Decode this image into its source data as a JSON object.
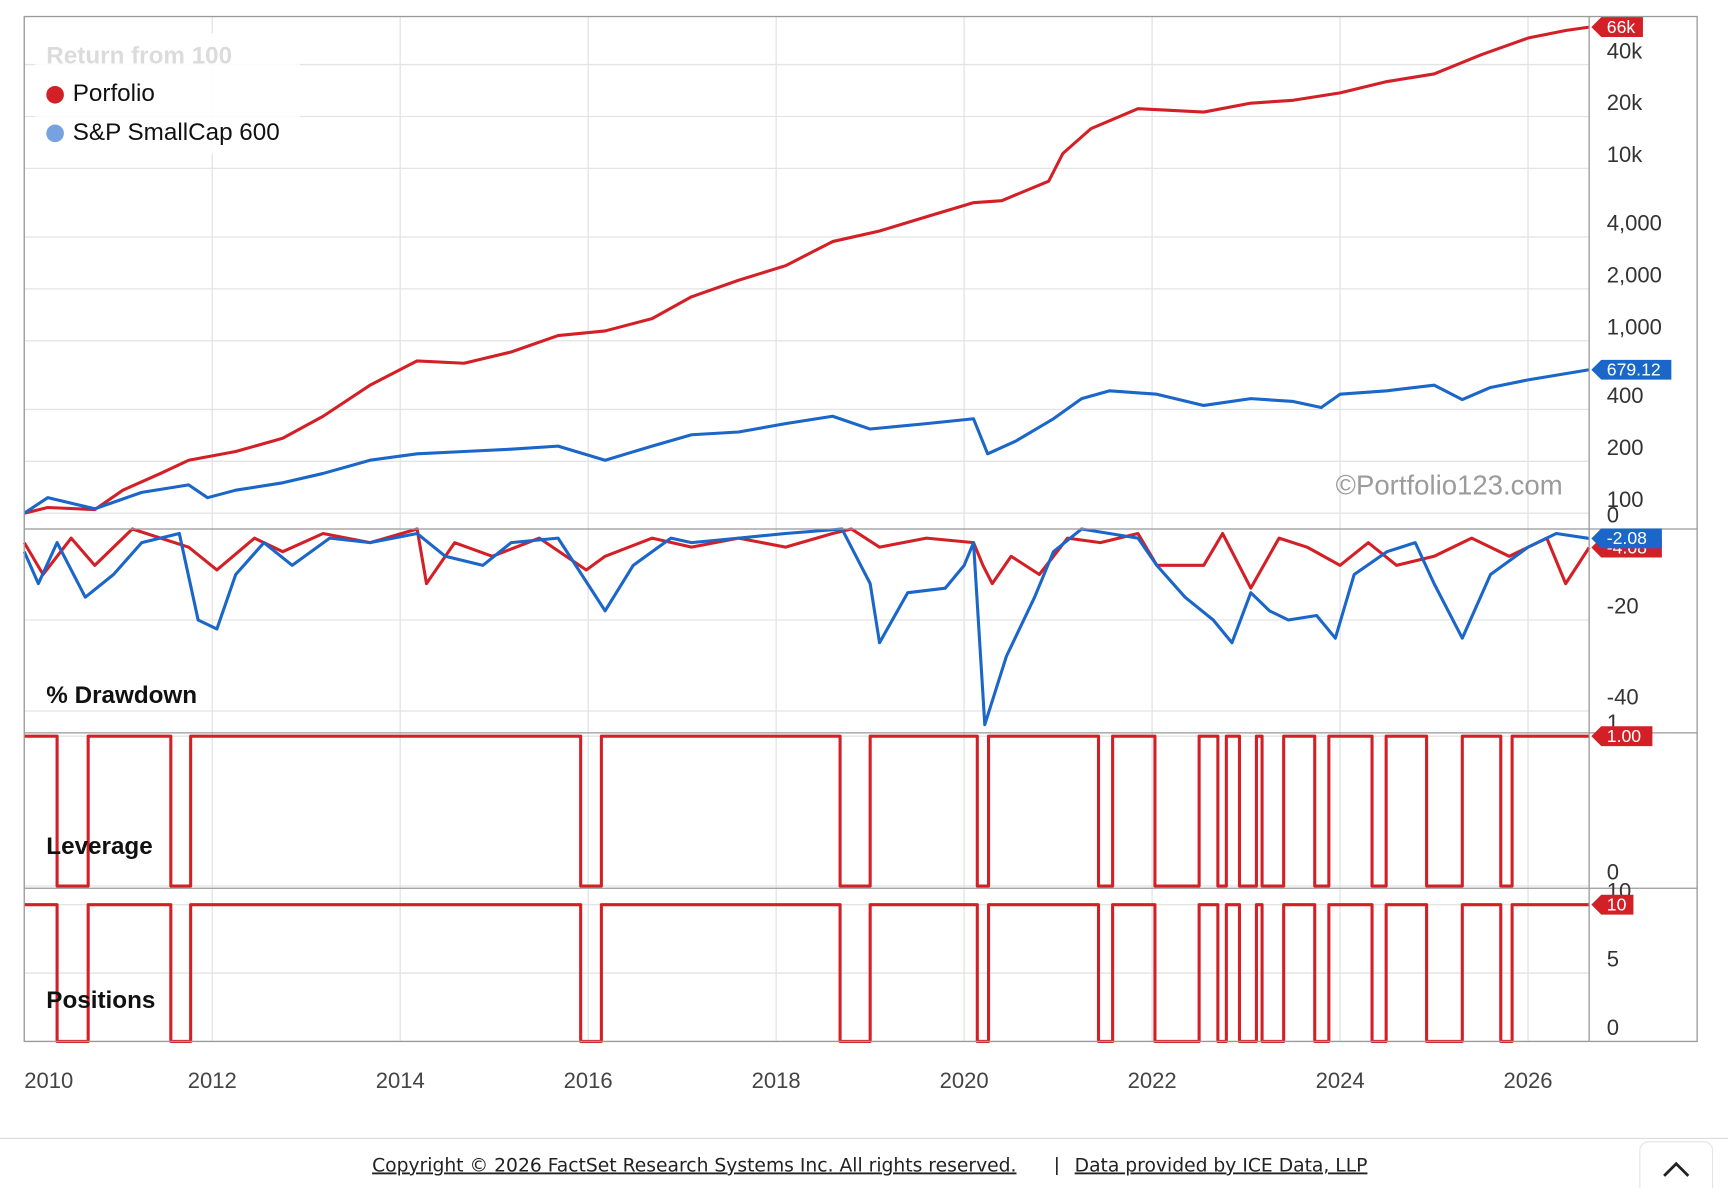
{
  "chart_data": [
    {
      "type": "line",
      "title": "Return from 100",
      "log": true,
      "grid": true,
      "legend": "top-left",
      "xlim": [
        2010.0,
        2026.65
      ],
      "xticks": [
        2010,
        2012,
        2014,
        2016,
        2018,
        2020,
        2022,
        2024,
        2026
      ],
      "ylim": [
        81,
        76000
      ],
      "yticks": [
        100,
        200,
        400,
        {
          "value": 1000,
          "label": "1,000"
        },
        {
          "value": 2000,
          "label": "2,000"
        },
        {
          "value": 4000,
          "label": "4,000"
        },
        {
          "value": 10000,
          "label": "10k"
        },
        {
          "value": 20000,
          "label": "20k"
        },
        {
          "value": 40000,
          "label": "40k"
        }
      ],
      "series": [
        {
          "name": "Porfolio",
          "color": "#d32027",
          "x": [
            2010.0,
            2010.25,
            2010.75,
            2011.05,
            2011.45,
            2011.75,
            2012.25,
            2012.75,
            2013.18,
            2013.68,
            2014.18,
            2014.68,
            2015.18,
            2015.68,
            2016.18,
            2016.68,
            2017.1,
            2017.6,
            2018.1,
            2018.6,
            2019.1,
            2019.6,
            2020.1,
            2020.4,
            2020.9,
            2021.05,
            2021.35,
            2021.85,
            2022.55,
            2023.05,
            2023.5,
            2024.0,
            2024.5,
            2025.0,
            2025.5,
            2026.0,
            2026.4,
            2026.65
          ],
          "values": [
            100,
            108,
            105,
            136,
            170,
            203,
            228,
            272,
            365,
            553,
            764,
            741,
            861,
            1072,
            1140,
            1345,
            1800,
            2246,
            2725,
            3762,
            4332,
            5244,
            6327,
            6500,
            8436,
            12200,
            17000,
            22200,
            21200,
            23900,
            24850,
            27400,
            31900,
            35300,
            45600,
            57000,
            63000,
            66000
          ],
          "value_labels": [
            null,
            null,
            null,
            null,
            null,
            null,
            null,
            null,
            null,
            null,
            null,
            null,
            null,
            null,
            null,
            null,
            null,
            null,
            null,
            null,
            null,
            null,
            null,
            null,
            null,
            null,
            null,
            null,
            null,
            null,
            null,
            null,
            null,
            null,
            null,
            null,
            null,
            "66k"
          ]
        },
        {
          "name": "S&P SmallCap 600",
          "color": "#1a66c9",
          "x": [
            2010.0,
            2010.25,
            2010.75,
            2011.25,
            2011.75,
            2011.95,
            2012.25,
            2012.75,
            2013.18,
            2013.68,
            2014.18,
            2014.68,
            2015.18,
            2015.68,
            2016.18,
            2016.68,
            2017.1,
            2017.6,
            2018.1,
            2018.6,
            2019.0,
            2019.6,
            2020.1,
            2020.25,
            2020.55,
            2020.95,
            2021.25,
            2021.55,
            2022.05,
            2022.55,
            2023.05,
            2023.5,
            2023.8,
            2024.0,
            2024.5,
            2025.0,
            2025.3,
            2025.6,
            2026.0,
            2026.65
          ],
          "values": [
            100,
            123,
            106,
            132,
            146,
            123,
            136,
            150,
            170,
            203,
            221,
            228,
            235,
            245,
            203,
            245,
            285,
            296,
            331,
            365,
            308,
            331,
            353,
            221,
            262,
            353,
            462,
            513,
            490,
            422,
            462,
            445,
            410,
            490,
            513,
            553,
            456,
            536,
            593,
            679.12
          ]
        }
      ]
    },
    {
      "type": "line",
      "title": "% Drawdown",
      "grid": true,
      "xlim": [
        2010.0,
        2026.65
      ],
      "xticks": [
        2010,
        2012,
        2014,
        2016,
        2018,
        2020,
        2022,
        2024,
        2026
      ],
      "ylim": [
        -44.8,
        0
      ],
      "yticks": [
        -40,
        -20,
        0
      ],
      "series": [
        {
          "name": "Porfolio",
          "color": "#d32027",
          "x": [
            2010.0,
            2010.2,
            2010.5,
            2010.75,
            2011.15,
            2011.75,
            2012.05,
            2012.45,
            2012.75,
            2013.18,
            2013.68,
            2014.18,
            2014.28,
            2014.58,
            2014.98,
            2015.48,
            2015.98,
            2016.18,
            2016.68,
            2017.1,
            2017.6,
            2018.1,
            2018.6,
            2018.8,
            2019.1,
            2019.6,
            2020.1,
            2020.2,
            2020.3,
            2020.5,
            2020.8,
            2021.1,
            2021.45,
            2021.85,
            2022.05,
            2022.55,
            2022.75,
            2023.05,
            2023.35,
            2023.65,
            2024.0,
            2024.3,
            2024.6,
            2025.0,
            2025.4,
            2025.8,
            2026.2,
            2026.4,
            2026.65
          ],
          "values": [
            -3,
            -10,
            -2,
            -8,
            0,
            -4,
            -9,
            -2,
            -5,
            -1,
            -3,
            0,
            -12,
            -3,
            -6,
            -2,
            -9,
            -6,
            -2,
            -4,
            -2,
            -4,
            -1,
            0,
            -4,
            -2,
            -3,
            -8,
            -12,
            -6,
            -10,
            -2,
            -3,
            -1,
            -8,
            -8,
            -1,
            -13,
            -2,
            -4,
            -8,
            -3,
            -8,
            -6,
            -2,
            -6,
            -2,
            -12,
            -4.08
          ]
        },
        {
          "name": "S&P SmallCap 600",
          "color": "#1a66c9",
          "x": [
            2010.0,
            2010.15,
            2010.35,
            2010.65,
            2010.95,
            2011.25,
            2011.65,
            2011.85,
            2012.05,
            2012.25,
            2012.55,
            2012.85,
            2013.25,
            2013.68,
            2014.18,
            2014.48,
            2014.88,
            2015.18,
            2015.68,
            2016.18,
            2016.48,
            2016.88,
            2017.1,
            2017.6,
            2018.1,
            2018.7,
            2019.0,
            2019.1,
            2019.4,
            2019.8,
            2020.0,
            2020.1,
            2020.22,
            2020.45,
            2020.75,
            2020.95,
            2021.25,
            2021.85,
            2022.05,
            2022.35,
            2022.65,
            2022.85,
            2023.05,
            2023.25,
            2023.45,
            2023.75,
            2023.95,
            2024.15,
            2024.5,
            2024.8,
            2025.0,
            2025.3,
            2025.6,
            2026.0,
            2026.3,
            2026.65
          ],
          "values": [
            -5,
            -12,
            -3,
            -15,
            -10,
            -3,
            -1,
            -20,
            -22,
            -10,
            -3,
            -8,
            -2,
            -3,
            -1,
            -6,
            -8,
            -3,
            -2,
            -18,
            -8,
            -2,
            -3,
            -2,
            -1,
            0,
            -12,
            -25,
            -14,
            -13,
            -8,
            -3,
            -43,
            -28,
            -15,
            -5,
            0,
            -2,
            -8,
            -15,
            -20,
            -25,
            -14,
            -18,
            -20,
            -19,
            -24,
            -10,
            -5,
            -3,
            -12,
            -24,
            -10,
            -4,
            -1,
            -2.08
          ]
        }
      ]
    },
    {
      "type": "line",
      "title": "Leverage",
      "grid": true,
      "xlim": [
        2010.0,
        2026.65
      ],
      "xticks": [
        2010,
        2012,
        2014,
        2016,
        2018,
        2020,
        2022,
        2024,
        2026
      ],
      "ylim": [
        -0.015,
        1.022
      ],
      "yticks": [
        0,
        1
      ],
      "series": [
        {
          "color": "#d32027",
          "x": [
            2010.0,
            2010.35,
            2010.35,
            2010.68,
            2010.68,
            2011.56,
            2011.56,
            2011.77,
            2011.77,
            2015.92,
            2015.92,
            2016.14,
            2016.14,
            2018.68,
            2018.68,
            2019.0,
            2019.0,
            2020.14,
            2020.14,
            2020.26,
            2020.26,
            2021.43,
            2021.43,
            2021.58,
            2021.58,
            2022.03,
            2022.03,
            2022.5,
            2022.5,
            2022.7,
            2022.7,
            2022.79,
            2022.79,
            2022.93,
            2022.93,
            2023.11,
            2023.11,
            2023.17,
            2023.17,
            2023.4,
            2023.4,
            2023.73,
            2023.73,
            2023.88,
            2023.88,
            2024.34,
            2024.34,
            2024.49,
            2024.49,
            2024.92,
            2024.92,
            2025.3,
            2025.3,
            2025.71,
            2025.71,
            2025.83,
            2025.83,
            2026.65
          ],
          "values": [
            1,
            1,
            0,
            0,
            1,
            1,
            0,
            0,
            1,
            1,
            0,
            0,
            1,
            1,
            0,
            0,
            1,
            1,
            0,
            0,
            1,
            1,
            0,
            0,
            1,
            1,
            0,
            0,
            1,
            1,
            0,
            0,
            1,
            1,
            0,
            0,
            1,
            1,
            0,
            0,
            1,
            1,
            0,
            0,
            1,
            1,
            0,
            0,
            1,
            1,
            0,
            0,
            1,
            1,
            0,
            0,
            1,
            1
          ],
          "value_labels": [
            null,
            null,
            null,
            null,
            null,
            null,
            null,
            null,
            null,
            null,
            null,
            null,
            null,
            null,
            null,
            null,
            null,
            null,
            null,
            null,
            null,
            null,
            null,
            null,
            null,
            null,
            null,
            null,
            null,
            null,
            null,
            null,
            null,
            null,
            null,
            null,
            null,
            null,
            null,
            null,
            null,
            null,
            null,
            null,
            null,
            null,
            null,
            null,
            null,
            null,
            null,
            null,
            null,
            null,
            null,
            null,
            null,
            "1.00"
          ]
        }
      ]
    },
    {
      "type": "line",
      "title": "Positions",
      "grid": true,
      "xlim": [
        2010.0,
        2026.65
      ],
      "xticks": [
        2010,
        2012,
        2014,
        2016,
        2018,
        2020,
        2022,
        2024,
        2026
      ],
      "ylim": [
        0,
        11.2
      ],
      "yticks": [
        0,
        5,
        10
      ],
      "series": [
        {
          "color": "#d32027",
          "x": [
            2010.0,
            2010.35,
            2010.35,
            2010.68,
            2010.68,
            2011.56,
            2011.56,
            2011.77,
            2011.77,
            2015.92,
            2015.92,
            2016.14,
            2016.14,
            2018.68,
            2018.68,
            2019.0,
            2019.0,
            2020.14,
            2020.14,
            2020.26,
            2020.26,
            2021.43,
            2021.43,
            2021.58,
            2021.58,
            2022.03,
            2022.03,
            2022.5,
            2022.5,
            2022.7,
            2022.7,
            2022.79,
            2022.79,
            2022.93,
            2022.93,
            2023.11,
            2023.11,
            2023.17,
            2023.17,
            2023.4,
            2023.4,
            2023.73,
            2023.73,
            2023.88,
            2023.88,
            2024.34,
            2024.34,
            2024.49,
            2024.49,
            2024.92,
            2024.92,
            2025.3,
            2025.3,
            2025.71,
            2025.71,
            2025.83,
            2025.83,
            2026.65
          ],
          "values": [
            10,
            10,
            0,
            0,
            10,
            10,
            0,
            0,
            10,
            10,
            0,
            0,
            10,
            10,
            0,
            0,
            10,
            10,
            0,
            0,
            10,
            10,
            0,
            0,
            10,
            10,
            0,
            0,
            10,
            10,
            0,
            0,
            10,
            10,
            0,
            0,
            10,
            10,
            0,
            0,
            10,
            10,
            0,
            0,
            10,
            10,
            0,
            0,
            10,
            10,
            0,
            0,
            10,
            10,
            0,
            0,
            10,
            10
          ]
        }
      ]
    }
  ],
  "watermark": "©Portfolio123.com",
  "footer": {
    "copyright": "Copyright © 2026 FactSet Research Systems Inc. All rights reserved.",
    "separator": "|",
    "data_credit": "Data provided by ICE Data, LLP"
  }
}
